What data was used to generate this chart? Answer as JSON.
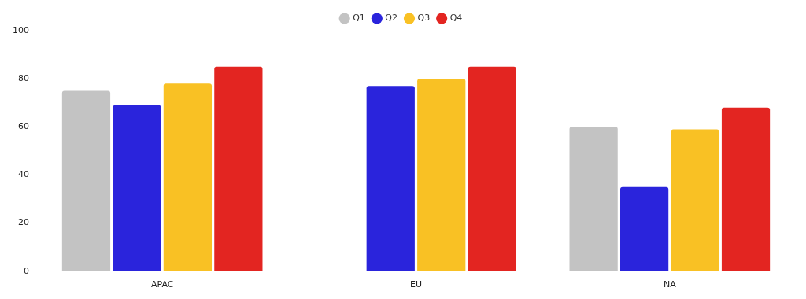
{
  "chart_data": {
    "type": "bar",
    "categories": [
      "APAC",
      "EU",
      "NA"
    ],
    "series": [
      {
        "name": "Q1",
        "color": "#c3c3c3",
        "values": [
          75,
          null,
          60
        ]
      },
      {
        "name": "Q2",
        "color": "#2a24dc",
        "values": [
          69,
          77,
          35
        ]
      },
      {
        "name": "Q3",
        "color": "#f9c124",
        "values": [
          78,
          80,
          59
        ]
      },
      {
        "name": "Q4",
        "color": "#e32521",
        "values": [
          85,
          85,
          68
        ]
      }
    ],
    "ylim": [
      0,
      100
    ],
    "yticks": [
      0,
      20,
      40,
      60,
      80,
      100
    ],
    "grid": "y",
    "legend": "top"
  }
}
